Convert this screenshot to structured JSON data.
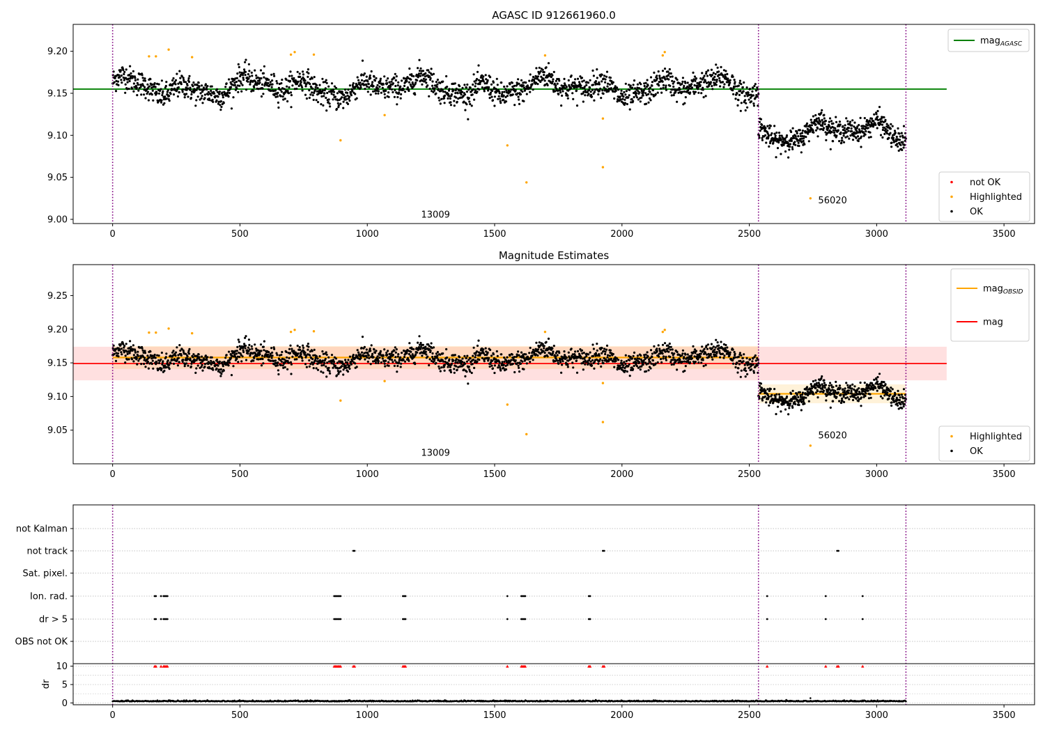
{
  "chart_data": [
    {
      "type": "scatter",
      "title": "AGASC ID 912661960.0",
      "xlim": [
        -155,
        3620
      ],
      "ylim": [
        8.995,
        9.232
      ],
      "xticks": [
        0,
        500,
        1000,
        1500,
        2000,
        2500,
        3000,
        3500
      ],
      "yticks": [
        9.0,
        9.05,
        9.1,
        9.15,
        9.2
      ],
      "ytick_labels": [
        "9.00",
        "9.05",
        "9.10",
        "9.15",
        "9.20"
      ],
      "vlines": [
        0,
        2536,
        3115
      ],
      "vline_color": "#800080",
      "hline": {
        "y": 9.155,
        "x": [
          -155,
          3275
        ],
        "color": "#008000"
      },
      "obs_labels": [
        {
          "text": "13009",
          "x": 1268,
          "y": 9.002
        },
        {
          "text": "56020",
          "x": 2827,
          "y": 9.019
        }
      ],
      "legend_top": {
        "placement": "top-right",
        "entries": [
          {
            "label": "mag",
            "sub": "AGASC",
            "color": "#008000"
          }
        ]
      },
      "legend_bottom": {
        "placement": "bottom-right",
        "entries": [
          {
            "label": "not OK",
            "color": "#ff0000"
          },
          {
            "label": "Highlighted",
            "color": "#ffa500"
          },
          {
            "label": "OK",
            "color": "#000000"
          }
        ]
      },
      "segments": [
        {
          "x0": 0,
          "x1": 2536,
          "center": 9.157,
          "wave_amp": 0.012,
          "noise": 0.0075,
          "n": 1900
        },
        {
          "x0": 2536,
          "x1": 3115,
          "center": 9.104,
          "wave_amp": 0.013,
          "noise": 0.0065,
          "n": 520
        }
      ],
      "highlighted": [
        [
          143,
          9.194
        ],
        [
          170,
          9.194
        ],
        [
          220,
          9.202
        ],
        [
          312,
          9.193
        ],
        [
          700,
          9.196
        ],
        [
          715,
          9.199
        ],
        [
          790,
          9.196
        ],
        [
          895,
          9.094
        ],
        [
          1068,
          9.124
        ],
        [
          1550,
          9.088
        ],
        [
          1625,
          9.044
        ],
        [
          1698,
          9.195
        ],
        [
          1925,
          9.062
        ],
        [
          1925,
          9.12
        ],
        [
          2160,
          9.195
        ],
        [
          2168,
          9.199
        ],
        [
          2740,
          9.025
        ]
      ]
    },
    {
      "type": "scatter",
      "title": "Magnitude Estimates",
      "xlim": [
        -155,
        3620
      ],
      "ylim": [
        9.0,
        9.296
      ],
      "xticks": [
        0,
        500,
        1000,
        1500,
        2000,
        2500,
        3000,
        3500
      ],
      "yticks": [
        9.05,
        9.1,
        9.15,
        9.2,
        9.25
      ],
      "ytick_labels": [
        "9.05",
        "9.10",
        "9.15",
        "9.20",
        "9.25"
      ],
      "vlines": [
        0,
        2536,
        3115
      ],
      "vline_color": "#800080",
      "mag_line": {
        "y": 9.149,
        "band": [
          9.124,
          9.174
        ],
        "x": [
          -155,
          3275
        ],
        "color": "#ff0000"
      },
      "obsid_mags": [
        {
          "x": [
            0,
            2536
          ],
          "y": 9.158,
          "band": [
            9.141,
            9.175
          ]
        },
        {
          "x": [
            2536,
            3115
          ],
          "y": 9.104,
          "band": [
            9.09,
            9.118
          ]
        }
      ],
      "obs_labels": [
        {
          "text": "13009",
          "x": 1268,
          "y": 9.012
        },
        {
          "text": "56020",
          "x": 2827,
          "y": 9.038
        }
      ],
      "legend_top": {
        "placement": "top-right",
        "entries": [
          {
            "label": "mag",
            "sub": "OBSID",
            "color": "#ffa500"
          },
          {
            "label": "mag",
            "sub": "",
            "color": "#ff0000"
          }
        ]
      },
      "legend_bottom": {
        "placement": "bottom-right",
        "entries": [
          {
            "label": "Highlighted",
            "color": "#ffa500"
          },
          {
            "label": "OK",
            "color": "#000000"
          }
        ]
      },
      "highlighted": [
        [
          143,
          9.195
        ],
        [
          170,
          9.195
        ],
        [
          220,
          9.201
        ],
        [
          312,
          9.194
        ],
        [
          700,
          9.196
        ],
        [
          715,
          9.199
        ],
        [
          790,
          9.197
        ],
        [
          895,
          9.094
        ],
        [
          1068,
          9.123
        ],
        [
          1550,
          9.088
        ],
        [
          1625,
          9.044
        ],
        [
          1698,
          9.196
        ],
        [
          1925,
          9.062
        ],
        [
          1925,
          9.12
        ],
        [
          2160,
          9.196
        ],
        [
          2168,
          9.199
        ],
        [
          2740,
          9.027
        ]
      ]
    },
    {
      "type": "scatter",
      "title": "",
      "xlim": [
        -155,
        3620
      ],
      "xticks": [
        0,
        500,
        1000,
        1500,
        2000,
        2500,
        3000,
        3500
      ],
      "vlines": [
        0,
        2536,
        3115
      ],
      "vline_color": "#800080",
      "flag_rows": [
        "not Kalman",
        "not track",
        "Sat. pixel.",
        "Ion. rad.",
        "dr > 5",
        "OBS not OK"
      ],
      "flag_points": {
        "not track": [
          945,
          950,
          1925,
          1930,
          2845,
          2850
        ],
        "Ion. rad.": [
          165,
          170,
          190,
          200,
          205,
          210,
          215,
          870,
          875,
          880,
          885,
          890,
          895,
          1140,
          1145,
          1150,
          1550,
          1605,
          1610,
          1615,
          1620,
          1870,
          1875,
          2570,
          2800,
          2945
        ],
        "dr > 5": [
          165,
          170,
          190,
          200,
          205,
          210,
          215,
          870,
          875,
          880,
          885,
          890,
          895,
          1140,
          1145,
          1150,
          1550,
          1605,
          1610,
          1615,
          1620,
          1870,
          1875,
          2570,
          2800,
          2945
        ]
      },
      "dr_ylabel": "dr",
      "dr_ylim": [
        -0.5,
        10.3
      ],
      "dr_yticks": [
        0,
        5,
        10
      ],
      "dr_clipped_x": [
        165,
        170,
        190,
        200,
        205,
        210,
        215,
        870,
        875,
        880,
        885,
        890,
        895,
        945,
        950,
        1140,
        1145,
        1150,
        1550,
        1605,
        1610,
        1615,
        1620,
        1870,
        1875,
        1925,
        1930,
        2570,
        2800,
        2845,
        2850,
        2945
      ],
      "dr_baseline": 0.4
    }
  ]
}
